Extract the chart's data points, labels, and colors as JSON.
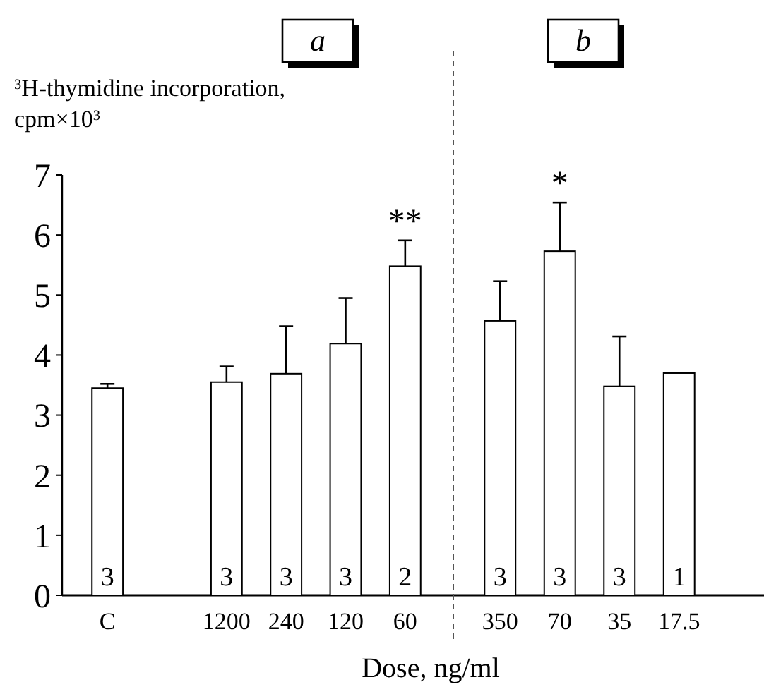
{
  "chart_data": [
    {
      "type": "bar",
      "title": "a",
      "ylabel": "$^{3}$H-thymidine incorporation, cpm×10$^{3}$",
      "xlabel": "Dose, ng/ml",
      "categories": [
        "C",
        null,
        "1200",
        "240",
        "120",
        "60"
      ],
      "values": [
        3.45,
        null,
        3.55,
        3.69,
        4.19,
        5.48
      ],
      "errors": [
        0.07,
        null,
        0.26,
        0.79,
        0.76,
        0.43
      ],
      "color": "#ffffff",
      "ylim": [
        0,
        7
      ],
      "yticks": [
        0,
        1,
        2,
        3,
        4,
        5,
        6,
        7
      ],
      "grid": false,
      "annotations": [
        {
          "text": "3",
          "x": "C",
          "y": 0
        },
        {
          "text": "3",
          "x": "1200",
          "y": 0
        },
        {
          "text": "3",
          "x": "240",
          "y": 0
        },
        {
          "text": "3",
          "x": "120",
          "y": 0
        },
        {
          "text": "2",
          "x": "60",
          "y": 0
        },
        {
          "text": "**",
          "x": "60",
          "y": 5.91
        }
      ]
    },
    {
      "type": "bar",
      "title": "b",
      "categories": [
        "350",
        "70",
        "35",
        "17.5"
      ],
      "values": [
        4.57,
        5.73,
        3.48,
        3.7
      ],
      "errors": [
        0.66,
        0.81,
        0.83,
        null
      ],
      "color": "#ffffff",
      "ylim": [
        0,
        7
      ],
      "yticks": [
        0,
        1,
        2,
        3,
        4,
        5,
        6,
        7
      ],
      "tick_labels": "x",
      "grid": false,
      "annotations": [
        {
          "text": "3",
          "x": "350",
          "y": 0
        },
        {
          "text": "3",
          "x": "70",
          "y": 0
        },
        {
          "text": "3",
          "x": "35",
          "y": 0
        },
        {
          "text": "1",
          "x": "17.5",
          "y": 0
        },
        {
          "text": "*",
          "x": "70",
          "y": 6.54
        }
      ]
    }
  ]
}
